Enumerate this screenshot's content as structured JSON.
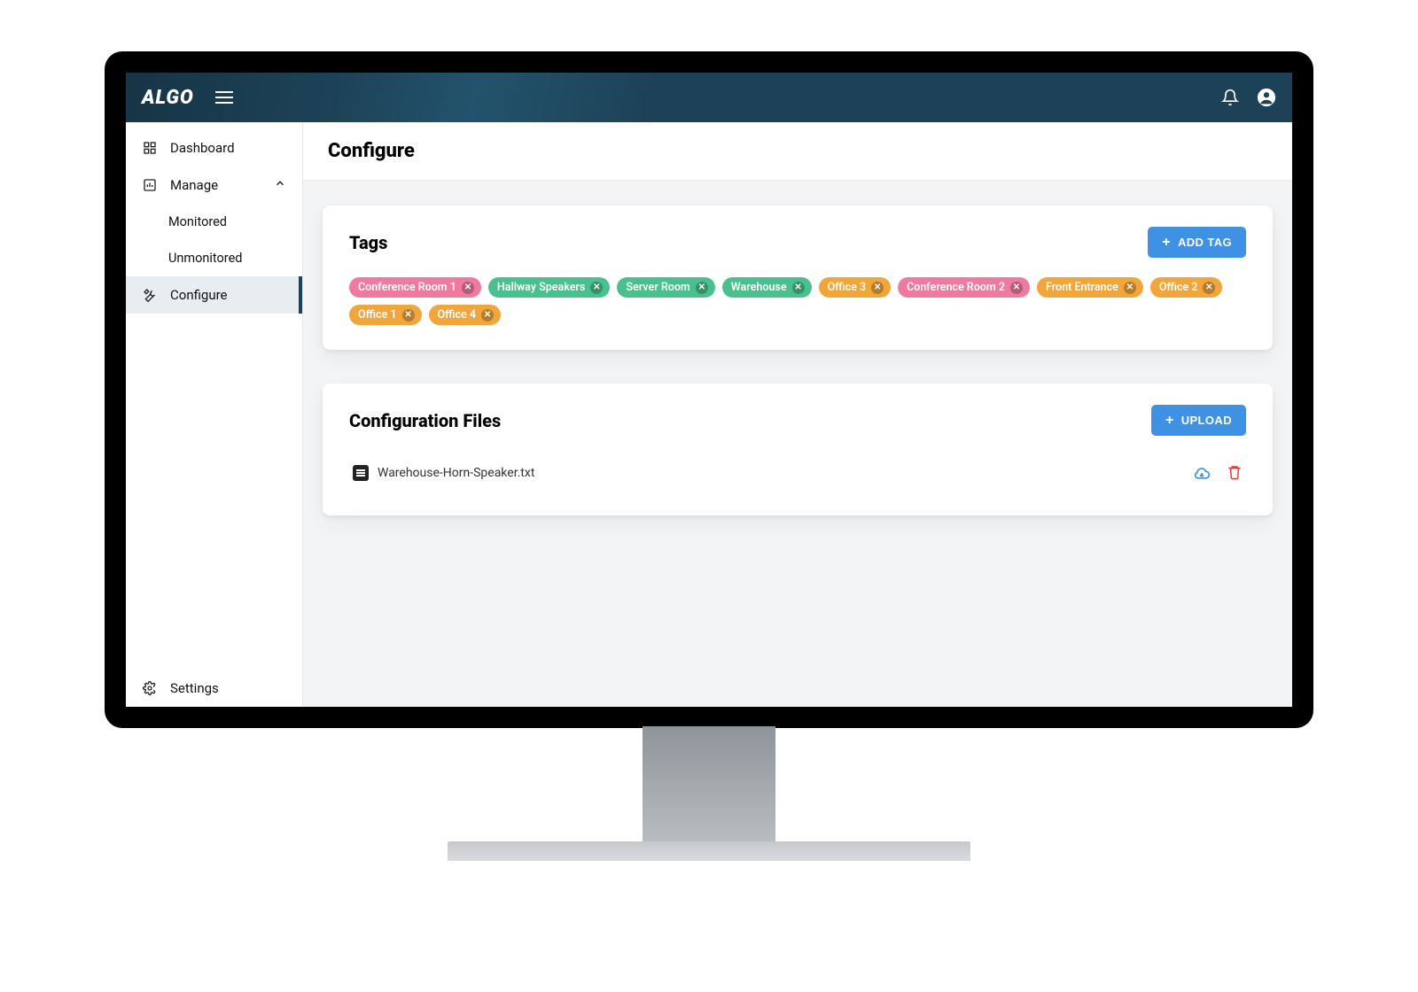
{
  "brand": "ALGO",
  "colors": {
    "topbar": "#1d4257",
    "sidebar_active_bg": "#e7edf1",
    "page_bg": "#f3f4f6",
    "card_bg": "#ffffff",
    "primary_button": "#3f92e3",
    "cloud_icon": "#3f92e3",
    "trash_icon": "#e53935"
  },
  "sidebar": {
    "items": [
      {
        "key": "dashboard",
        "label": "Dashboard",
        "icon": "dashboard-icon",
        "active": false
      },
      {
        "key": "manage",
        "label": "Manage",
        "icon": "chart-icon",
        "expanded": true,
        "children": [
          {
            "key": "monitored",
            "label": "Monitored"
          },
          {
            "key": "unmonitored",
            "label": "Unmonitored"
          }
        ]
      },
      {
        "key": "configure",
        "label": "Configure",
        "icon": "tools-icon",
        "active": true
      }
    ],
    "footer": {
      "key": "settings",
      "label": "Settings",
      "icon": "gear-icon"
    }
  },
  "page": {
    "title": "Configure"
  },
  "tags_card": {
    "title": "Tags",
    "button_label": "ADD TAG",
    "tags": [
      {
        "label": "Conference Room 1",
        "color": "#ef7aa0"
      },
      {
        "label": "Hallway Speakers",
        "color": "#4bc08f"
      },
      {
        "label": "Server Room",
        "color": "#4bc08f"
      },
      {
        "label": "Warehouse",
        "color": "#4bc08f"
      },
      {
        "label": "Office 3",
        "color": "#f0a63a"
      },
      {
        "label": "Conference Room 2",
        "color": "#ef7aa0"
      },
      {
        "label": "Front Entrance",
        "color": "#f0a63a"
      },
      {
        "label": "Office 2",
        "color": "#f0a63a"
      },
      {
        "label": "Office 1",
        "color": "#f0a63a"
      },
      {
        "label": "Office 4",
        "color": "#f0a63a"
      }
    ]
  },
  "files_card": {
    "title": "Configuration Files",
    "button_label": "UPLOAD",
    "files": [
      {
        "name": "Warehouse-Horn-Speaker.txt"
      }
    ]
  }
}
